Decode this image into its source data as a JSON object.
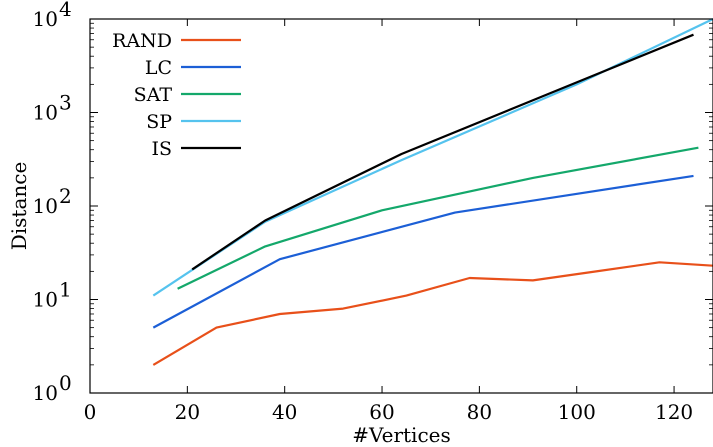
{
  "chart_data": {
    "type": "line",
    "title": "",
    "xlabel": "#Vertices",
    "ylabel": "Distance",
    "xlim": [
      0,
      128
    ],
    "ylim": [
      1,
      10000
    ],
    "yscale": "log",
    "grid": false,
    "legend_position": "top-left",
    "x_ticks": [
      0,
      20,
      40,
      60,
      80,
      100,
      120
    ],
    "y_ticks": [
      {
        "value": 1,
        "base": "10",
        "exp": "0"
      },
      {
        "value": 10,
        "base": "10",
        "exp": "1"
      },
      {
        "value": 100,
        "base": "10",
        "exp": "2"
      },
      {
        "value": 1000,
        "base": "10",
        "exp": "3"
      },
      {
        "value": 10000,
        "base": "10",
        "exp": "4"
      }
    ],
    "series": [
      {
        "name": "RAND",
        "color": "#e8501a",
        "x": [
          13,
          26,
          39,
          52,
          65,
          78,
          91,
          104,
          117,
          128
        ],
        "y": [
          2,
          5,
          7,
          8,
          11,
          17,
          16,
          20,
          25,
          23
        ]
      },
      {
        "name": "LC",
        "color": "#1c5fd6",
        "x": [
          13,
          39,
          75,
          124
        ],
        "y": [
          5,
          27,
          85,
          210
        ]
      },
      {
        "name": "SAT",
        "color": "#14a86b",
        "x": [
          18,
          36,
          60,
          91,
          125
        ],
        "y": [
          13,
          37,
          90,
          200,
          420
        ]
      },
      {
        "name": "SP",
        "color": "#55c3ee",
        "x": [
          13,
          36,
          64,
          100,
          128
        ],
        "y": [
          11,
          68,
          310,
          2000,
          10000
        ]
      },
      {
        "name": "IS",
        "color": "#000000",
        "x": [
          21,
          36,
          64,
          100,
          124
        ],
        "y": [
          21,
          70,
          360,
          2100,
          6800
        ]
      }
    ]
  }
}
